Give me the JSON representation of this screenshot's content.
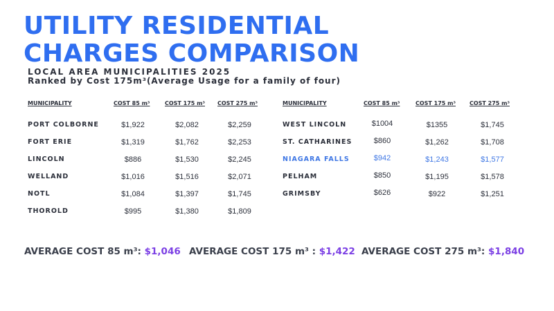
{
  "title_line1": "UTILITY RESIDENTIAL",
  "title_line2": "CHARGES COMPARISON",
  "subtitle1": "LOCAL AREA MUNICIPALITIES 2025",
  "subtitle2": "Ranked by Cost 175m³(Average Usage for a family of four)",
  "headers": {
    "municipality": "MUNICIPALITY",
    "cost85": "COST 85 m³",
    "cost175": "COST 175 m³",
    "cost275": "COST 275 m³"
  },
  "left_rows": [
    {
      "name": "PORT COLBORNE",
      "c85": "$1,922",
      "c175": "$2,082",
      "c275": "$2,259"
    },
    {
      "name": "FORT ERIE",
      "c85": "$1,319",
      "c175": "$1,762",
      "c275": "$2,253"
    },
    {
      "name": "LINCOLN",
      "c85": "$886",
      "c175": "$1,530",
      "c275": "$2,245"
    },
    {
      "name": "WELLAND",
      "c85": "$1,016",
      "c175": "$1,516",
      "c275": "$2,071"
    },
    {
      "name": "NOTL",
      "c85": "$1,084",
      "c175": "$1,397",
      "c275": "$1,745"
    },
    {
      "name": "THOROLD",
      "c85": "$995",
      "c175": "$1,380",
      "c275": "$1,809"
    }
  ],
  "right_rows": [
    {
      "name": "WEST LINCOLN",
      "c85": "$1004",
      "c175": "$1355",
      "c275": "$1,745"
    },
    {
      "name": "ST. CATHARINES",
      "c85": "$860",
      "c175": "$1,262",
      "c275": "$1,708"
    },
    {
      "name": "NIAGARA FALLS",
      "c85": "$942",
      "c175": "$1,243",
      "c275": "$1,577"
    },
    {
      "name": "PELHAM",
      "c85": "$850",
      "c175": "$1,195",
      "c275": "$1,578"
    },
    {
      "name": "GRIMSBY",
      "c85": "$626",
      "c175": "$922",
      "c275": "$1,251"
    }
  ],
  "averages": {
    "a85_label": "AVERAGE COST 85 m³:",
    "a85_value": "$1,046",
    "a175_label": "AVERAGE COST 175 m³ :",
    "a175_value": "$1,422",
    "a275_label": "AVERAGE COST 275 m³:",
    "a275_value": "$1,840"
  },
  "colors": {
    "title": "#2f6ef0",
    "highlight_row": "#3f77e4",
    "average_value": "#7b3fe4",
    "text": "#2b2f3a"
  }
}
